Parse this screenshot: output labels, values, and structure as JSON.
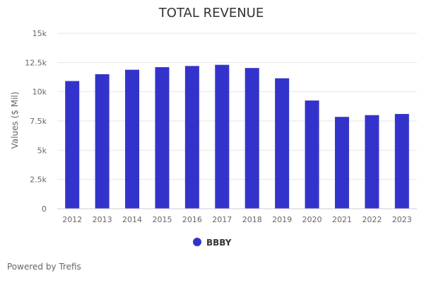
{
  "chart_data": {
    "type": "bar",
    "title": "TOTAL REVENUE",
    "xlabel": "",
    "ylabel": "Values ($ Mil)",
    "categories": [
      "2012",
      "2013",
      "2014",
      "2015",
      "2016",
      "2017",
      "2018",
      "2019",
      "2020",
      "2021",
      "2022",
      "2023"
    ],
    "series": [
      {
        "name": "BBBY",
        "color": "#3333cc",
        "values": [
          10915,
          11500,
          11880,
          12100,
          12200,
          12300,
          12030,
          11150,
          9250,
          7850,
          8000,
          8100
        ]
      }
    ],
    "ylim": [
      0,
      15000
    ],
    "yticks": [
      0,
      2500,
      5000,
      7500,
      10000,
      12500,
      15000
    ],
    "ytick_labels": [
      "0",
      "2.5k",
      "5k",
      "7.5k",
      "10k",
      "12.5k",
      "15k"
    ],
    "grid": true,
    "legend": "bottom-center"
  },
  "credits": "Powered by Trefis"
}
